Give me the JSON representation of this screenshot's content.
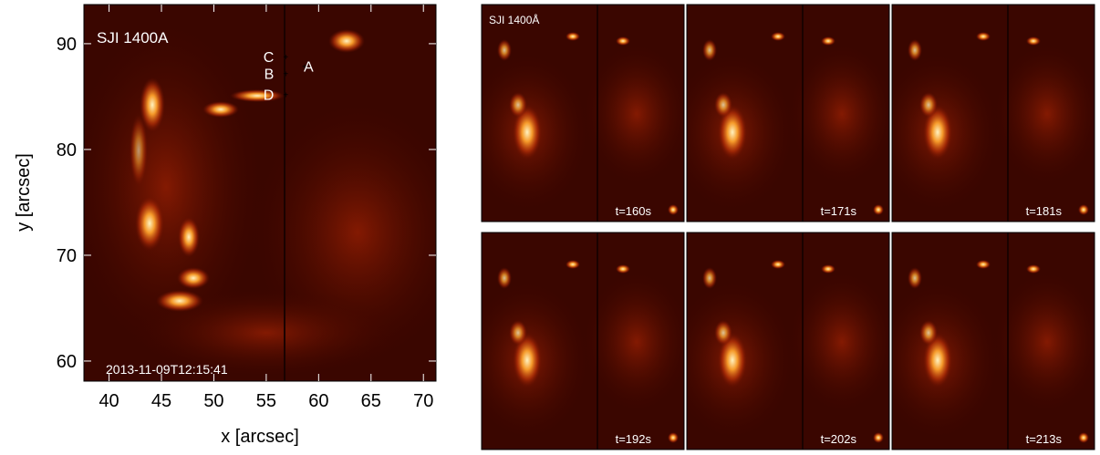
{
  "main_panel": {
    "label": "SJI 1400A",
    "timestamp": "2013-11-09T12:15:41",
    "xlabel": "x [arcsec]",
    "ylabel": "y [arcsec]",
    "xlim": [
      37.6,
      71.2
    ],
    "ylim": [
      58.1,
      93.7
    ],
    "xticks": [
      40,
      45,
      50,
      55,
      60,
      65,
      70
    ],
    "yticks": [
      60,
      70,
      80,
      90
    ],
    "markers": [
      {
        "label": "C",
        "x": 56.6,
        "y": 88.8
      },
      {
        "label": "B",
        "x": 56.6,
        "y": 87.2
      },
      {
        "label": "A",
        "x": 58.4,
        "y": 87.9
      },
      {
        "label": "D",
        "x": 56.6,
        "y": 85.2
      }
    ]
  },
  "small_panels": {
    "label": "SJI 1400Å",
    "times": [
      "t=160s",
      "t=171s",
      "t=181s",
      "t=192s",
      "t=202s",
      "t=213s"
    ]
  }
}
